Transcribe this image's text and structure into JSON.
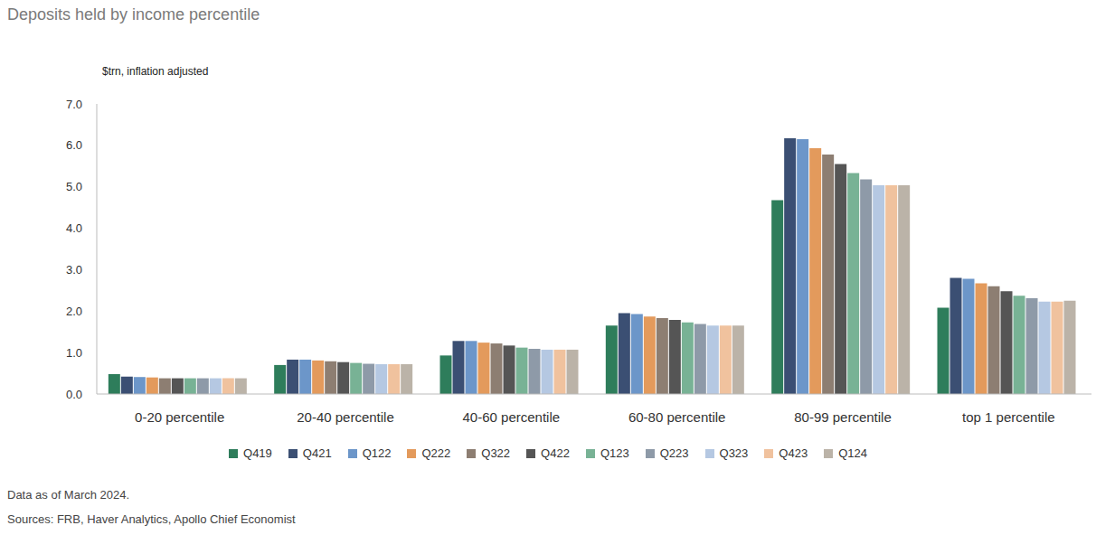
{
  "chart_data": {
    "type": "bar",
    "title": "Deposits held by income percentile",
    "y_label": "$trn, inflation adjusted",
    "notes": [
      "Data as of March 2024.",
      "Sources: FRB, Haver Analytics, Apollo Chief Economist"
    ],
    "categories": [
      "0-20 percentile",
      "20-40 percentile",
      "40-60 percentile",
      "60-80 percentile",
      "80-99 percentile",
      "top 1 percentile"
    ],
    "series": [
      {
        "name": "Q419",
        "color": "#2e7d5b",
        "values": [
          0.48,
          0.7,
          0.93,
          1.65,
          4.68,
          2.08
        ]
      },
      {
        "name": "Q421",
        "color": "#3b4f73",
        "values": [
          0.42,
          0.83,
          1.28,
          1.95,
          6.17,
          2.8
        ]
      },
      {
        "name": "Q122",
        "color": "#6c96c9",
        "values": [
          0.41,
          0.83,
          1.28,
          1.93,
          6.15,
          2.78
        ]
      },
      {
        "name": "Q222",
        "color": "#e39a5c",
        "values": [
          0.4,
          0.81,
          1.24,
          1.87,
          5.93,
          2.67
        ]
      },
      {
        "name": "Q322",
        "color": "#8d7e72",
        "values": [
          0.38,
          0.79,
          1.22,
          1.83,
          5.78,
          2.6
        ]
      },
      {
        "name": "Q422",
        "color": "#555555",
        "values": [
          0.38,
          0.77,
          1.17,
          1.79,
          5.55,
          2.48
        ]
      },
      {
        "name": "Q123",
        "color": "#78b295",
        "values": [
          0.38,
          0.75,
          1.12,
          1.73,
          5.33,
          2.37
        ]
      },
      {
        "name": "Q223",
        "color": "#8e9aa8",
        "values": [
          0.38,
          0.73,
          1.09,
          1.69,
          5.18,
          2.31
        ]
      },
      {
        "name": "Q323",
        "color": "#b5c8e2",
        "values": [
          0.38,
          0.72,
          1.07,
          1.65,
          5.04,
          2.23
        ]
      },
      {
        "name": "Q423",
        "color": "#f0c29e",
        "values": [
          0.38,
          0.72,
          1.07,
          1.65,
          5.04,
          2.23
        ]
      },
      {
        "name": "Q124",
        "color": "#bbb3a8",
        "values": [
          0.38,
          0.72,
          1.07,
          1.65,
          5.04,
          2.25
        ]
      }
    ],
    "ylim": [
      0,
      7
    ],
    "yticks": [
      {
        "value": 0,
        "label": "0.0"
      },
      {
        "value": 1,
        "label": "1.0"
      },
      {
        "value": 2,
        "label": "2.0"
      },
      {
        "value": 3,
        "label": "3.0"
      },
      {
        "value": 4,
        "label": "4.0"
      },
      {
        "value": 5,
        "label": "5.0"
      },
      {
        "value": 6,
        "label": "6.0"
      },
      {
        "value": 7,
        "label": "7.0"
      }
    ],
    "grid": false,
    "legend": "bottom"
  }
}
